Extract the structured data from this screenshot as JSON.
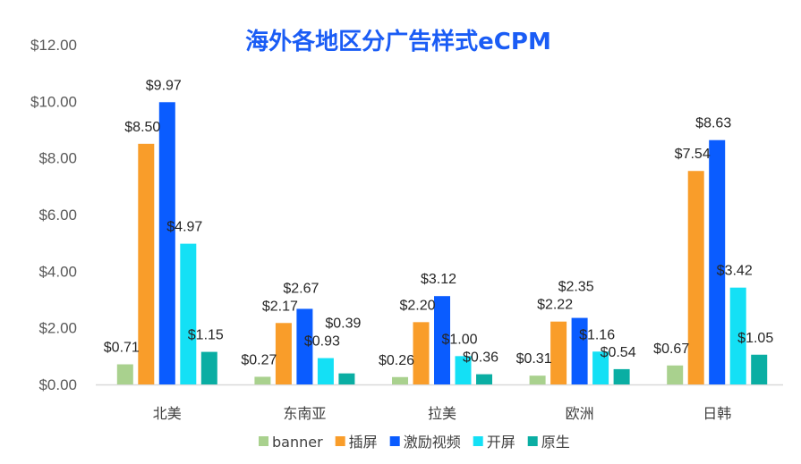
{
  "chart_data": {
    "type": "bar",
    "title": "海外各地区分广告样式eCPM",
    "xlabel": "",
    "ylabel": "",
    "ylim": [
      0,
      12
    ],
    "yticks": [
      "$0.00",
      "$2.00",
      "$4.00",
      "$6.00",
      "$8.00",
      "$10.00",
      "$12.00"
    ],
    "grid": false,
    "legend": "bottom",
    "categories": [
      "北美",
      "东南亚",
      "拉美",
      "欧洲",
      "日韩"
    ],
    "series": [
      {
        "name": "banner",
        "color": "#a9d18e",
        "values": [
          0.71,
          0.27,
          0.26,
          0.31,
          0.67
        ],
        "labels": [
          "$0.71",
          "$0.27",
          "$0.26",
          "$0.31",
          "$0.67"
        ]
      },
      {
        "name": "插屏",
        "color": "#f99d2a",
        "values": [
          8.5,
          2.17,
          2.2,
          2.22,
          7.54
        ],
        "labels": [
          "$8.50",
          "$2.17",
          "$2.20",
          "$2.22",
          "$7.54"
        ]
      },
      {
        "name": "激励视频",
        "color": "#0a5cff",
        "values": [
          9.97,
          2.67,
          3.12,
          2.35,
          8.63
        ],
        "labels": [
          "$9.97",
          "$2.67",
          "$3.12",
          "$2.35",
          "$8.63"
        ]
      },
      {
        "name": "开屏",
        "color": "#14e0f5",
        "values": [
          4.97,
          0.93,
          1.0,
          1.16,
          3.42
        ],
        "labels": [
          "$4.97",
          "$0.93",
          "$1.00",
          "$1.16",
          "$3.42"
        ]
      },
      {
        "name": "原生",
        "color": "#0aaea3",
        "values": [
          1.15,
          0.39,
          0.36,
          0.54,
          1.05
        ],
        "labels": [
          "$1.15",
          "$0.39",
          "$0.36",
          "$0.54",
          "$1.05"
        ]
      }
    ]
  }
}
